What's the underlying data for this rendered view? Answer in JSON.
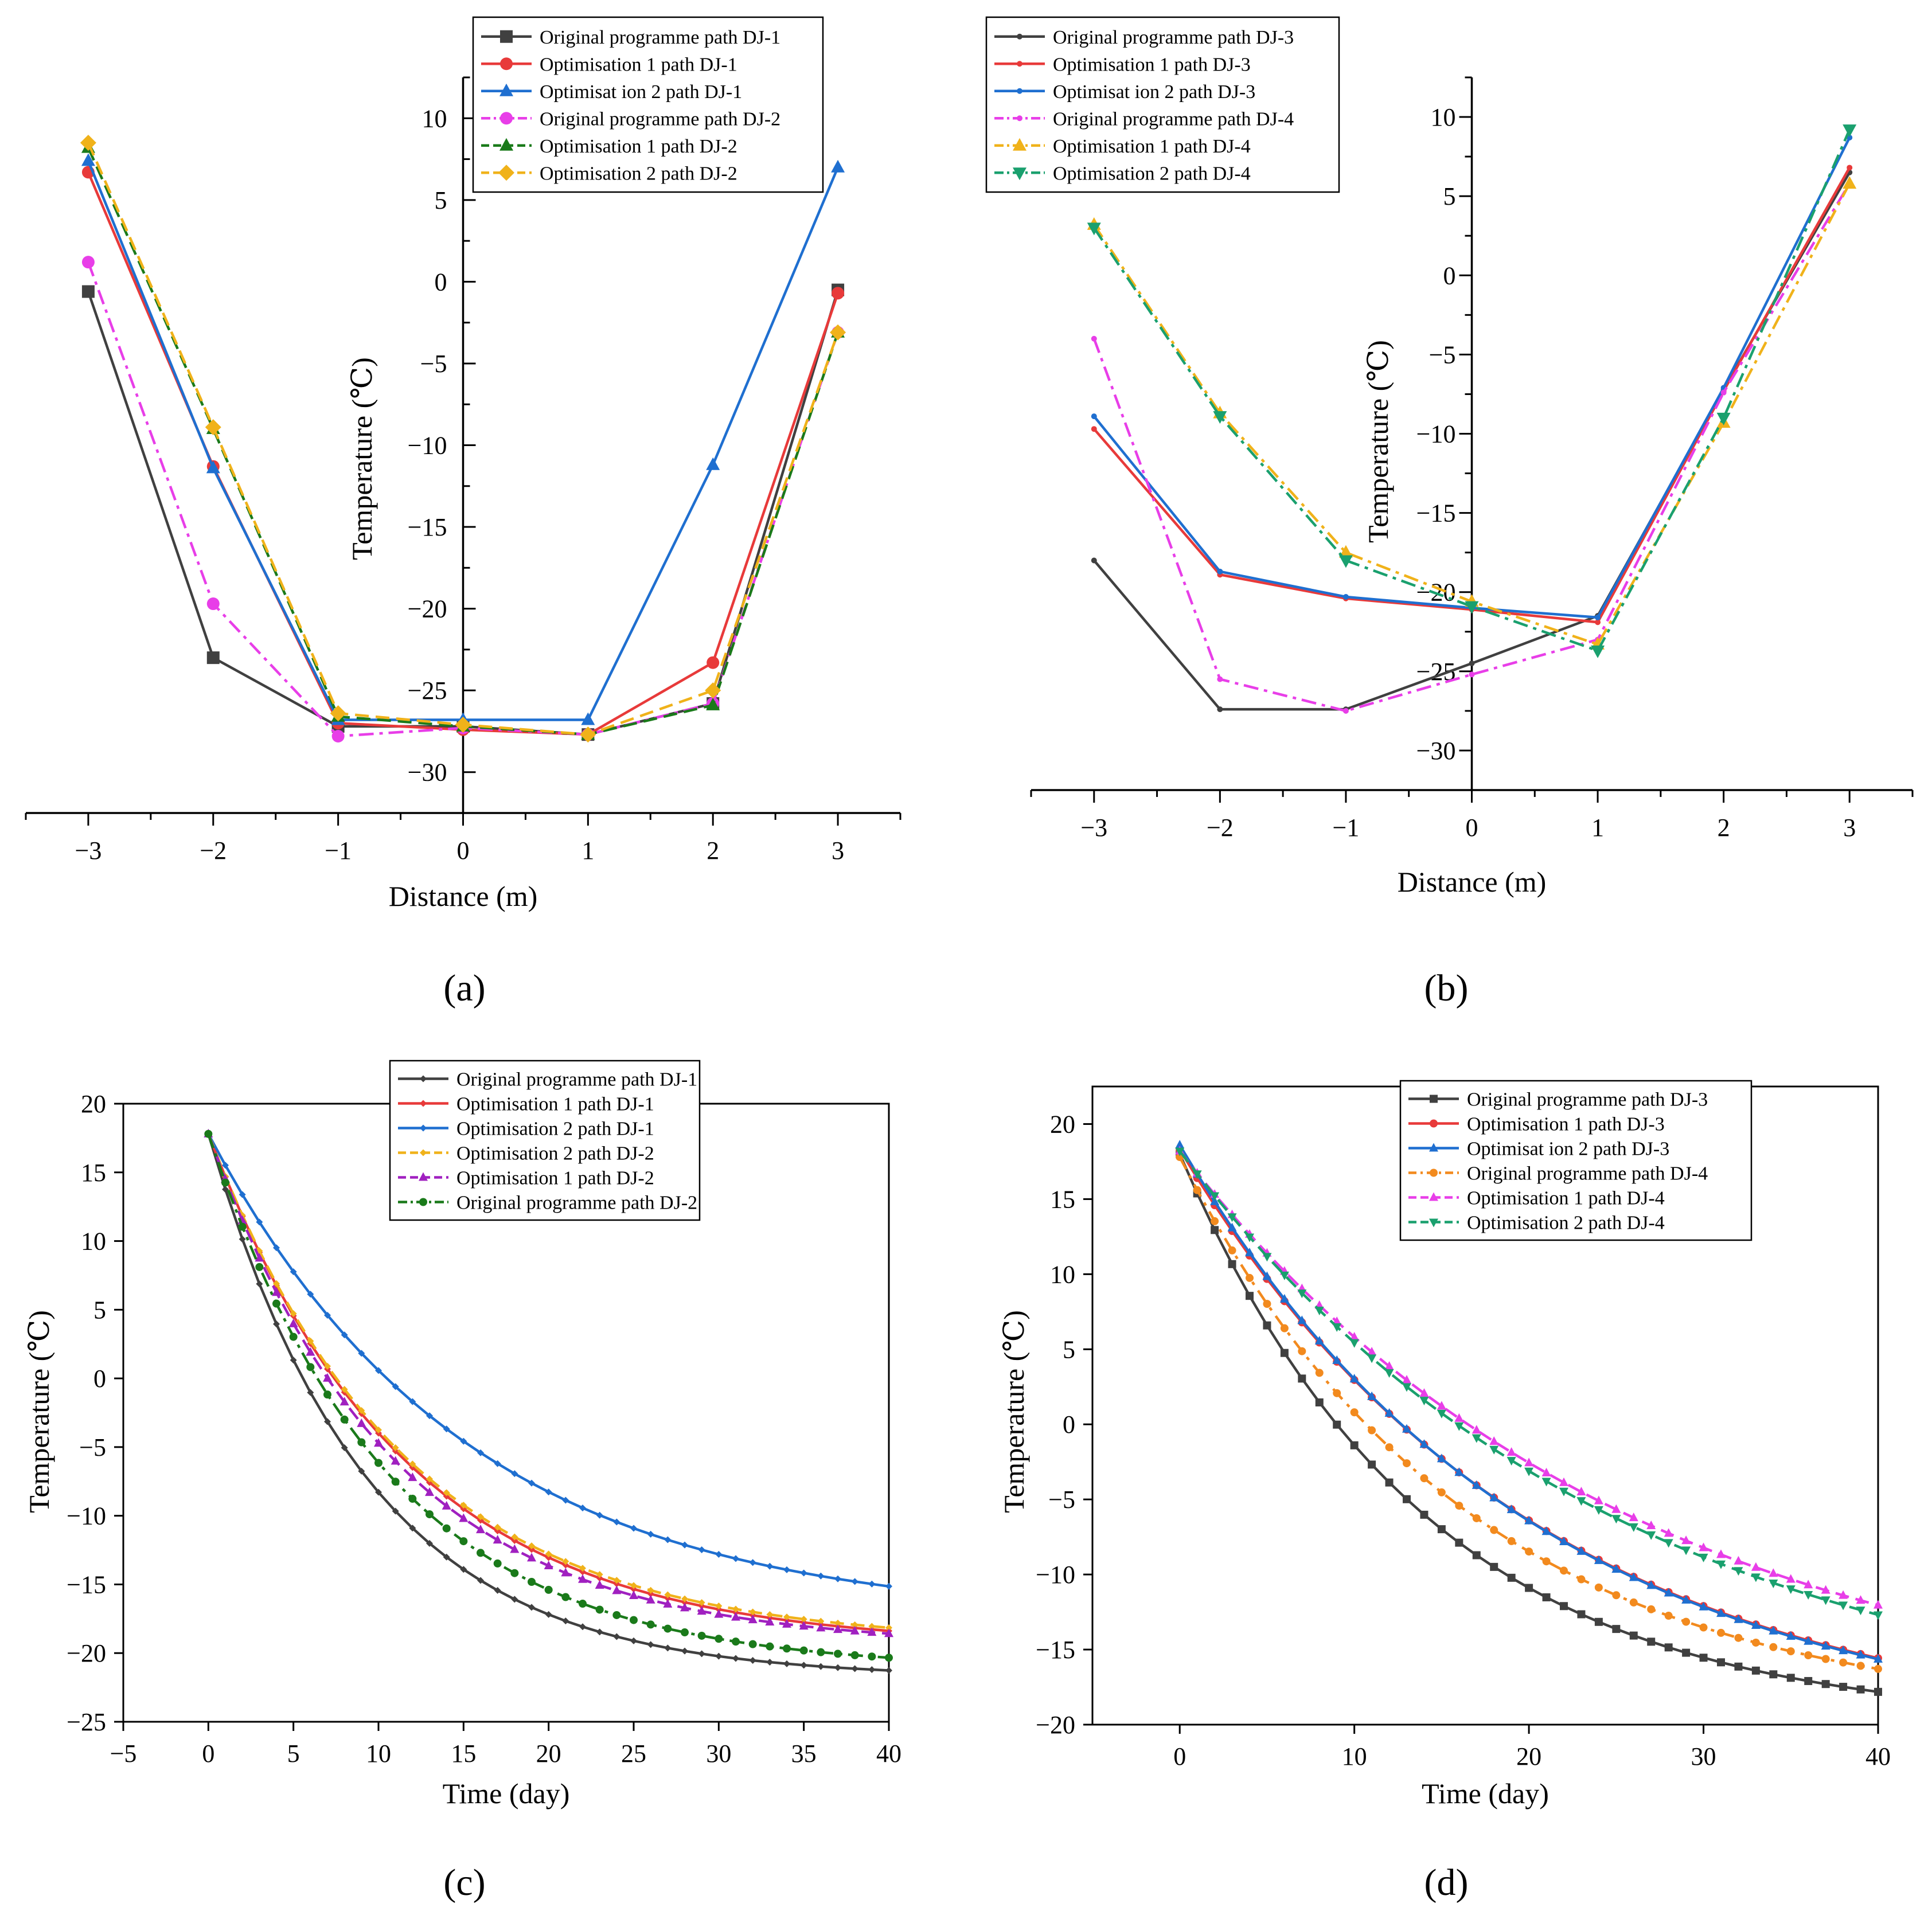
{
  "figure": {
    "panel_labels": [
      "(a)",
      "(b)",
      "(c)",
      "(d)"
    ]
  },
  "chart_data": [
    {
      "panel": "(a)",
      "type": "line",
      "xlabel": "Distance (m)",
      "ylabel": "Temperature (℃)",
      "xlim": [
        -3.5,
        3.5
      ],
      "ylim": [
        -32.5,
        12.5
      ],
      "xticks": [
        -3,
        -2,
        -1,
        0,
        1,
        2,
        3
      ],
      "yticks": [
        -30,
        -25,
        -20,
        -15,
        -10,
        -5,
        0,
        5,
        10
      ],
      "axes_style": "cross",
      "x": [
        -3,
        -2,
        -1,
        0,
        1,
        2,
        3
      ],
      "legend_position": "top-right",
      "series": [
        {
          "name": "Original programme path DJ-1",
          "color": "#404040",
          "dash": "",
          "marker": "square",
          "values": [
            -0.6,
            -23.0,
            -27.2,
            -27.2,
            -27.7,
            -25.8,
            -0.5
          ]
        },
        {
          "name": "Optimisation 1 path DJ-1",
          "color": "#e83a3a",
          "dash": "",
          "marker": "circle",
          "values": [
            6.7,
            -11.3,
            -27.0,
            -27.4,
            -27.7,
            -23.3,
            -0.7
          ]
        },
        {
          "name": "Optimisat ion 2 path DJ-1",
          "color": "#1f6fd0",
          "dash": "",
          "marker": "triangle",
          "values": [
            7.4,
            -11.4,
            -26.8,
            -26.8,
            -26.8,
            -11.2,
            7.0
          ]
        },
        {
          "name": "Original programme path DJ-2",
          "color": "#e83ee8",
          "dash": "26 10 6 10",
          "marker": "circle",
          "values": [
            1.2,
            -19.7,
            -27.8,
            -27.3,
            -27.7,
            -25.8,
            -3.1
          ]
        },
        {
          "name": "Optimisation 1 path DJ-2",
          "color": "#1a7a1a",
          "dash": "24 12",
          "marker": "triangle",
          "values": [
            8.2,
            -9.0,
            -26.6,
            -27.2,
            -27.7,
            -25.9,
            -3.1
          ]
        },
        {
          "name": "Optimisation 2 path DJ-2",
          "color": "#f0b21a",
          "dash": "24 12",
          "marker": "diamond",
          "values": [
            8.5,
            -8.9,
            -26.4,
            -27.1,
            -27.7,
            -25.0,
            -3.1
          ]
        }
      ]
    },
    {
      "panel": "(b)",
      "type": "line",
      "xlabel": "Distance (m)",
      "ylabel": "Temperature (℃)",
      "xlim": [
        -3.5,
        3.5
      ],
      "ylim": [
        -32.5,
        12.5
      ],
      "xticks": [
        -3,
        -2,
        -1,
        0,
        1,
        2,
        3
      ],
      "yticks": [
        -30,
        -25,
        -20,
        -15,
        -10,
        -5,
        0,
        5,
        10
      ],
      "axes_style": "cross",
      "x": [
        -3,
        -2,
        -1,
        0,
        1,
        2,
        3
      ],
      "legend_position": "top-left",
      "series": [
        {
          "name": "Original programme path DJ-3",
          "color": "#404040",
          "dash": "",
          "marker": "small",
          "values": [
            -18.0,
            -27.4,
            -27.4,
            -24.5,
            -21.5,
            -7.2,
            6.5
          ]
        },
        {
          "name": "Optimisation 1 path DJ-3",
          "color": "#e83a3a",
          "dash": "",
          "marker": "small",
          "values": [
            -9.7,
            -18.9,
            -20.4,
            -21.1,
            -21.9,
            -7.3,
            6.8
          ]
        },
        {
          "name": "Optimisat ion 2 path DJ-3",
          "color": "#1f6fd0",
          "dash": "",
          "marker": "small",
          "values": [
            -8.9,
            -18.7,
            -20.3,
            -21.0,
            -21.6,
            -7.1,
            8.7
          ]
        },
        {
          "name": "Original programme path DJ-4",
          "color": "#e83ee8",
          "dash": "26 10 6 10",
          "marker": "small",
          "values": [
            -4.0,
            -25.5,
            -27.5,
            -25.2,
            -23.0,
            -7.4,
            5.8
          ]
        },
        {
          "name": "Optimisation 1 path DJ-4",
          "color": "#f0b21a",
          "dash": "26 10 6 10",
          "marker": "triangle",
          "values": [
            3.2,
            -8.7,
            -17.5,
            -20.6,
            -23.3,
            -9.3,
            5.8
          ]
        },
        {
          "name": "Optimisation 2 path DJ-4",
          "color": "#1aa06e",
          "dash": "26 10 6 10",
          "marker": "triangle-down",
          "values": [
            3.0,
            -8.9,
            -18.0,
            -20.9,
            -23.7,
            -9.0,
            9.2
          ]
        }
      ]
    },
    {
      "panel": "(c)",
      "type": "line",
      "xlabel": "Time (day)",
      "ylabel": "Temperature (℃)",
      "xlim": [
        -5,
        40
      ],
      "ylim": [
        -25,
        20
      ],
      "xticks": [
        -5,
        0,
        5,
        10,
        15,
        20,
        25,
        30,
        35,
        40
      ],
      "yticks": [
        -25,
        -20,
        -15,
        -10,
        -5,
        0,
        5,
        10,
        15,
        20
      ],
      "axes_style": "box",
      "x_range": [
        0,
        40,
        1
      ],
      "curve_model": "exponential",
      "legend_position": "top-right",
      "series": [
        {
          "name": "Original programme path DJ-1",
          "color": "#404040",
          "dash": "",
          "marker": "small",
          "T0": 17.8,
          "Tinf": -21.8,
          "tau": 9.3
        },
        {
          "name": "Optimisation 1 path DJ-1",
          "color": "#e83a3a",
          "dash": "",
          "marker": "small",
          "T0": 17.8,
          "Tinf": -19.5,
          "tau": 11.4
        },
        {
          "name": "Optimisation 2 path DJ-1",
          "color": "#1f6fd0",
          "dash": "",
          "marker": "small",
          "T0": 17.8,
          "Tinf": -17.6,
          "tau": 15.0
        },
        {
          "name": "Optimisation 2 path DJ-2",
          "color": "#f0b21a",
          "dash": "24 12",
          "marker": "small",
          "T0": 17.8,
          "Tinf": -19.3,
          "tau": 11.5
        },
        {
          "name": "Optimisation 1 path DJ-2",
          "color": "#a020c0",
          "dash": "24 12",
          "marker": "triangle",
          "T0": 17.8,
          "Tinf": -19.5,
          "tau": 10.8
        },
        {
          "name": "Original programme path DJ-2",
          "color": "#1a7a1a",
          "dash": "26 10 6 10",
          "marker": "circle",
          "T0": 17.8,
          "Tinf": -21.2,
          "tau": 10.5
        }
      ]
    },
    {
      "panel": "(d)",
      "type": "line",
      "xlabel": "Time (day)",
      "ylabel": "Temperature (℃)",
      "xlim": [
        -5,
        40
      ],
      "ylim": [
        -20,
        22.5
      ],
      "xticks": [
        0,
        10,
        20,
        30,
        40
      ],
      "yticks": [
        -20,
        -15,
        -10,
        -5,
        0,
        5,
        10,
        15,
        20
      ],
      "axes_style": "box",
      "x_range": [
        0,
        40,
        1
      ],
      "curve_model": "exponential",
      "legend_position": "top-right",
      "series": [
        {
          "name": "Original programme path DJ-3",
          "color": "#404040",
          "dash": "",
          "marker": "square",
          "T0": 18.0,
          "Tinf": -20.0,
          "tau": 14.0
        },
        {
          "name": "Optimisation 1 path DJ-3",
          "color": "#e83a3a",
          "dash": "",
          "marker": "circle",
          "T0": 18.3,
          "Tinf": -21.0,
          "tau": 20.2
        },
        {
          "name": "Optimisat ion 2 path DJ-3",
          "color": "#1f6fd0",
          "dash": "",
          "marker": "triangle",
          "T0": 18.6,
          "Tinf": -21.0,
          "tau": 20.0
        },
        {
          "name": "Original programme path DJ-4",
          "color": "#f28a1e",
          "dash": "24 12 6 12",
          "marker": "circle",
          "T0": 17.8,
          "Tinf": -19.6,
          "tau": 16.5
        },
        {
          "name": "Optimisation 1 path DJ-4",
          "color": "#e83ee8",
          "dash": "24 12",
          "marker": "triangle",
          "T0": 18.2,
          "Tinf": -20.0,
          "tau": 25.5
        },
        {
          "name": "Optimisation 2 path DJ-4",
          "color": "#1aa06e",
          "dash": "24 12",
          "marker": "triangle-down",
          "T0": 18.2,
          "Tinf": -20.5,
          "tau": 25.0
        }
      ]
    }
  ]
}
